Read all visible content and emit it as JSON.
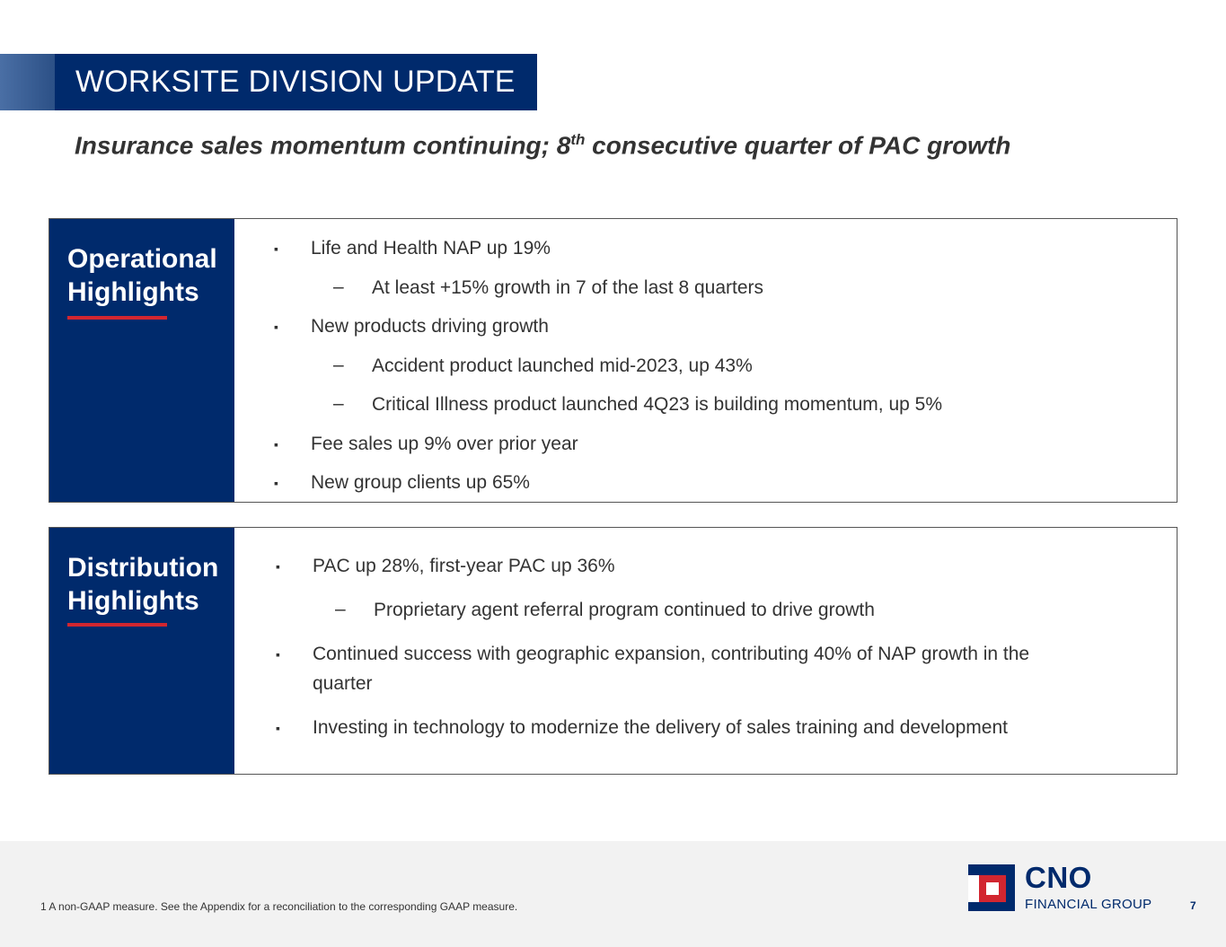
{
  "header": {
    "title": "WORKSITE DIVISION UPDATE",
    "subtitle_pre": "Insurance sales momentum continuing; 8",
    "subtitle_sup": "th",
    "subtitle_post": " consecutive quarter of PAC growth"
  },
  "operational": {
    "heading": "Operational\nHighlights",
    "items": [
      {
        "marker": "▪",
        "text": "Life and Health NAP up 19%"
      },
      {
        "marker": "–",
        "text": "At least +15% growth in 7 of the last 8 quarters"
      },
      {
        "marker": "▪",
        "text": "New products driving growth"
      },
      {
        "marker": "–",
        "text": "Accident product launched mid-2023, up 43%"
      },
      {
        "marker": "–",
        "text": "Critical Illness product launched 4Q23 is building momentum, up 5%"
      },
      {
        "marker": "▪",
        "text": "Fee sales up 9% over prior year"
      },
      {
        "marker": "▪",
        "text": "New group clients up 65%"
      }
    ]
  },
  "distribution": {
    "heading": "Distribution\nHighlights",
    "items": [
      {
        "marker": "▪",
        "text": "PAC up 28%, first-year PAC up 36%"
      },
      {
        "marker": "–",
        "text": "Proprietary agent referral program continued to drive growth"
      },
      {
        "marker": "▪",
        "text": "Continued success with geographic expansion, contributing 40% of NAP growth in the quarter"
      },
      {
        "marker": "▪",
        "text": "Investing in technology to modernize the delivery of sales training and development"
      }
    ]
  },
  "footer": {
    "footnote": "1  A non-GAAP measure. See the Appendix for a reconciliation to the corresponding GAAP measure.",
    "logo_name": "CNO",
    "logo_sub": "FINANCIAL GROUP",
    "page_number": "7"
  },
  "colors": {
    "navy": "#002a6c",
    "red": "#d22630",
    "footer_bg": "#f2f2f2"
  }
}
